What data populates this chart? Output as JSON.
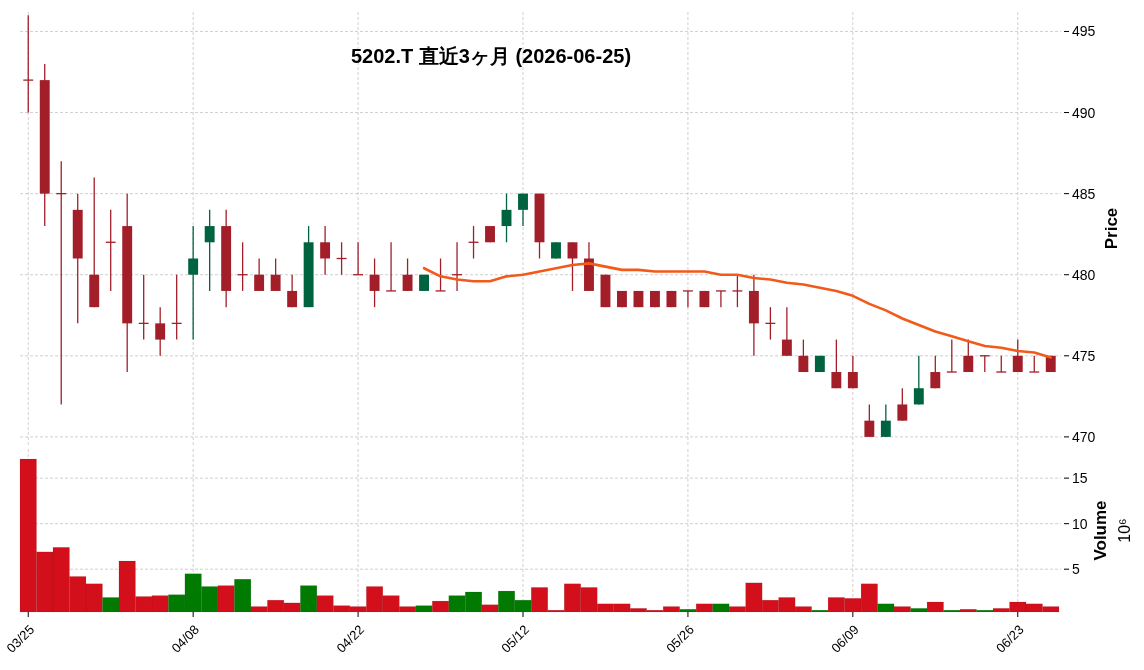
{
  "chart_data": [
    {
      "type": "candlestick",
      "title": "5202.T  直近3ヶ月  (2026-06-25)",
      "ylabel": "Price",
      "grid": true,
      "tick_labels": "y",
      "categories": [
        null,
        null,
        null,
        null,
        null,
        null,
        null,
        null,
        null,
        null,
        null,
        null,
        null,
        null,
        null,
        null,
        null,
        null,
        null,
        null,
        null,
        null,
        null,
        null,
        null,
        null,
        null,
        null,
        null,
        null,
        null,
        null,
        null,
        null,
        null,
        null,
        null,
        null,
        null,
        null,
        null,
        null,
        null,
        null,
        null,
        null,
        null,
        null,
        null,
        null,
        null,
        null,
        null,
        null,
        null,
        null,
        null,
        null,
        null,
        null,
        null,
        null,
        null
      ],
      "ohlc": [
        [
          492,
          496,
          490,
          492
        ],
        [
          492,
          493,
          483,
          485
        ],
        [
          485,
          487,
          472,
          485
        ],
        [
          484,
          485,
          477,
          481
        ],
        [
          480,
          486,
          478,
          478
        ],
        [
          482,
          484,
          479,
          482
        ],
        [
          483,
          485,
          474,
          477
        ],
        [
          477,
          480,
          476,
          477
        ],
        [
          477,
          478,
          475,
          476
        ],
        [
          477,
          480,
          476,
          477
        ],
        [
          480,
          483,
          476,
          481
        ],
        [
          482,
          484,
          479,
          483
        ],
        [
          483,
          484,
          478,
          479
        ],
        [
          480,
          482,
          479,
          480
        ],
        [
          480,
          481,
          479,
          479
        ],
        [
          480,
          481,
          479,
          479
        ],
        [
          479,
          480,
          478,
          478
        ],
        [
          478,
          483,
          478,
          482
        ],
        [
          482,
          483,
          480,
          481
        ],
        [
          481,
          482,
          480,
          481
        ],
        [
          480,
          482,
          480,
          480
        ],
        [
          480,
          481,
          478,
          479
        ],
        [
          479,
          482,
          479,
          479
        ],
        [
          480,
          481,
          479,
          479
        ],
        [
          479,
          480,
          479,
          480
        ],
        [
          479,
          481,
          479,
          479
        ],
        [
          480,
          482,
          479,
          480
        ],
        [
          482,
          483,
          481,
          482
        ],
        [
          483,
          483,
          482,
          482
        ],
        [
          483,
          485,
          482,
          484
        ],
        [
          484,
          485,
          483,
          485
        ],
        [
          485,
          485,
          481,
          482
        ],
        [
          481,
          482,
          481,
          482
        ],
        [
          482,
          482,
          479,
          481
        ],
        [
          481,
          482,
          479,
          479
        ],
        [
          480,
          480,
          478,
          478
        ],
        [
          479,
          479,
          478,
          478
        ],
        [
          479,
          479,
          478,
          478
        ],
        [
          479,
          479,
          478,
          478
        ],
        [
          479,
          479,
          478,
          478
        ],
        [
          479,
          479,
          478,
          479
        ],
        [
          479,
          479,
          478,
          478
        ],
        [
          479,
          479,
          478,
          479
        ],
        [
          479,
          480,
          478,
          479
        ],
        [
          479,
          480,
          475,
          477
        ],
        [
          477,
          478,
          476,
          477
        ],
        [
          476,
          478,
          475,
          475
        ],
        [
          475,
          476,
          474,
          474
        ],
        [
          474,
          475,
          474,
          475
        ],
        [
          474,
          476,
          473,
          473
        ],
        [
          474,
          475,
          473,
          473
        ],
        [
          471,
          472,
          470,
          470
        ],
        [
          470,
          472,
          470,
          471
        ],
        [
          472,
          473,
          471,
          471
        ],
        [
          472,
          475,
          472,
          473
        ],
        [
          474,
          475,
          473,
          473
        ],
        [
          474,
          476,
          474,
          474
        ],
        [
          475,
          476,
          474,
          474
        ],
        [
          475,
          475,
          474,
          475
        ],
        [
          474,
          475,
          474,
          474
        ],
        [
          475,
          476,
          474,
          474
        ],
        [
          474,
          475,
          474,
          474
        ],
        [
          475,
          475,
          474,
          474
        ]
      ],
      "colors": [
        "#a21f2a",
        "#a21f2a",
        "#a21f2a",
        "#a21f2a",
        "#a21f2a",
        "#a21f2a",
        "#a21f2a",
        "#a21f2a",
        "#a21f2a",
        "#a21f2a",
        "#006340",
        "#006340",
        "#a21f2a",
        "#a21f2a",
        "#a21f2a",
        "#a21f2a",
        "#a21f2a",
        "#006340",
        "#a21f2a",
        "#a21f2a",
        "#a21f2a",
        "#a21f2a",
        "#a21f2a",
        "#a21f2a",
        "#006340",
        "#a21f2a",
        "#a21f2a",
        "#a21f2a",
        "#a21f2a",
        "#006340",
        "#006340",
        "#a21f2a",
        "#006340",
        "#a21f2a",
        "#a21f2a",
        "#a21f2a",
        "#a21f2a",
        "#a21f2a",
        "#a21f2a",
        "#a21f2a",
        "#a21f2a",
        "#a21f2a",
        "#a21f2a",
        "#a21f2a",
        "#a21f2a",
        "#a21f2a",
        "#a21f2a",
        "#a21f2a",
        "#006340",
        "#a21f2a",
        "#a21f2a",
        "#a21f2a",
        "#006340",
        "#a21f2a",
        "#006340",
        "#a21f2a",
        "#a21f2a",
        "#a21f2a",
        "#a21f2a",
        "#a21f2a",
        "#a21f2a",
        "#a21f2a",
        "#a21f2a"
      ],
      "series": [
        {
          "type": "line",
          "color": "#f25a1a",
          "values": [
            null,
            null,
            null,
            null,
            null,
            null,
            null,
            null,
            null,
            null,
            null,
            null,
            null,
            null,
            null,
            null,
            null,
            null,
            null,
            null,
            null,
            null,
            null,
            null,
            480.4,
            479.9,
            479.7,
            479.6,
            479.6,
            479.9,
            480.0,
            480.2,
            480.4,
            480.6,
            480.7,
            480.5,
            480.3,
            480.3,
            480.2,
            480.2,
            480.2,
            480.2,
            480.0,
            480.0,
            479.8,
            479.7,
            479.5,
            479.4,
            479.2,
            479.0,
            478.7,
            478.2,
            477.8,
            477.3,
            476.9,
            476.5,
            476.2,
            475.9,
            475.6,
            475.5,
            475.3,
            475.2,
            474.9
          ]
        }
      ],
      "ylim": [
        469.5,
        496.2
      ],
      "yticks": [
        470,
        475,
        480,
        485,
        490,
        495
      ]
    },
    {
      "type": "bar",
      "ylabel": "Volume",
      "annotations": [
        "10⁶"
      ],
      "grid": true,
      "categories": [
        "03/25",
        null,
        null,
        null,
        null,
        null,
        null,
        null,
        null,
        null,
        "04/08",
        null,
        null,
        null,
        null,
        null,
        null,
        null,
        null,
        null,
        "04/22",
        null,
        null,
        null,
        null,
        null,
        null,
        null,
        null,
        null,
        "05/12",
        null,
        null,
        null,
        null,
        null,
        null,
        null,
        null,
        null,
        "05/26",
        null,
        null,
        null,
        null,
        null,
        null,
        null,
        null,
        null,
        "06/09",
        null,
        null,
        null,
        null,
        null,
        null,
        null,
        null,
        null,
        "06/23",
        null,
        null
      ],
      "values": [
        17.1,
        6.9,
        7.4,
        4.2,
        3.4,
        1.9,
        5.9,
        2.0,
        2.1,
        2.2,
        4.5,
        3.1,
        3.2,
        3.9,
        0.9,
        1.6,
        1.3,
        3.2,
        2.1,
        1.0,
        0.9,
        3.1,
        2.1,
        0.9,
        1.0,
        1.5,
        2.1,
        2.5,
        1.1,
        2.6,
        1.6,
        3.0,
        0.5,
        3.4,
        3.0,
        1.2,
        1.2,
        0.7,
        0.5,
        0.9,
        0.6,
        1.2,
        1.2,
        0.9,
        3.5,
        1.6,
        1.9,
        0.9,
        0.5,
        1.9,
        1.8,
        3.4,
        1.2,
        0.9,
        0.7,
        1.4,
        0.5,
        0.6,
        0.5,
        0.7,
        1.4,
        1.2,
        0.9
      ],
      "colors": [
        "#d20f1a",
        "#d20f1a",
        "#d20f1a",
        "#d20f1a",
        "#d20f1a",
        "#007a00",
        "#d20f1a",
        "#d20f1a",
        "#d20f1a",
        "#007a00",
        "#007a00",
        "#007a00",
        "#d20f1a",
        "#007a00",
        "#d20f1a",
        "#d20f1a",
        "#d20f1a",
        "#007a00",
        "#d20f1a",
        "#d20f1a",
        "#d20f1a",
        "#d20f1a",
        "#d20f1a",
        "#d20f1a",
        "#007a00",
        "#d20f1a",
        "#007a00",
        "#007a00",
        "#d20f1a",
        "#007a00",
        "#007a00",
        "#d20f1a",
        "#d20f1a",
        "#d20f1a",
        "#d20f1a",
        "#d20f1a",
        "#d20f1a",
        "#d20f1a",
        "#d20f1a",
        "#d20f1a",
        "#007a00",
        "#d20f1a",
        "#007a00",
        "#d20f1a",
        "#d20f1a",
        "#d20f1a",
        "#d20f1a",
        "#d20f1a",
        "#007a00",
        "#d20f1a",
        "#d20f1a",
        "#d20f1a",
        "#007a00",
        "#d20f1a",
        "#007a00",
        "#d20f1a",
        "#007a00",
        "#d20f1a",
        "#007a00",
        "#d20f1a",
        "#d20f1a",
        "#d20f1a",
        "#d20f1a"
      ],
      "ylim": [
        0.3,
        18.2
      ],
      "yticks": [
        5,
        10,
        15
      ]
    }
  ]
}
